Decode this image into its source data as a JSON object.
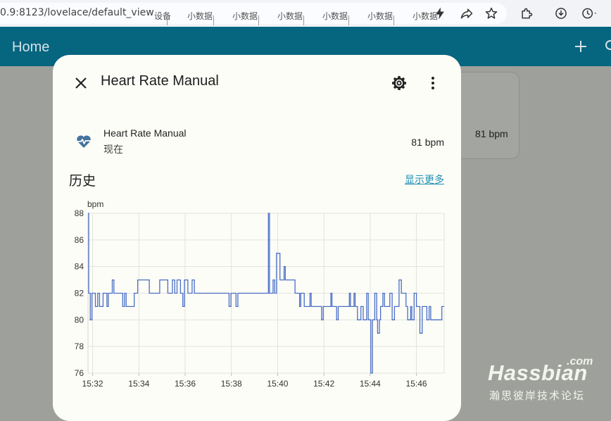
{
  "browser": {
    "url": "0.9:8123/lovelace/default_view",
    "ghost_tabs": [
      "设备",
      "小数据",
      "小数据",
      "小数据",
      "小数据",
      "小数据",
      "小数据"
    ]
  },
  "header": {
    "title": "Home"
  },
  "background_card": {
    "value": "81 bpm"
  },
  "dialog": {
    "title": "Heart Rate Manual",
    "entity": {
      "name": "Heart Rate Manual",
      "time": "现在",
      "state": "81 bpm"
    },
    "history_title": "历史",
    "show_more": "显示更多"
  },
  "chart_data": {
    "type": "line",
    "title": "",
    "ylabel": "bpm",
    "xlabel": "",
    "ylim": [
      76,
      88
    ],
    "xlim_minutes": [
      31.8,
      47.2
    ],
    "y_ticks": [
      76,
      78,
      80,
      82,
      84,
      86,
      88
    ],
    "x_ticks": [
      "15:32",
      "15:34",
      "15:36",
      "15:38",
      "15:40",
      "15:42",
      "15:44",
      "15:46"
    ],
    "x_tick_minutes": [
      32,
      34,
      36,
      38,
      40,
      42,
      44,
      46
    ],
    "grid": true,
    "step": true,
    "color": "#4a6fc7",
    "series": [
      {
        "name": "Heart Rate Manual",
        "points": [
          [
            31.8,
            88
          ],
          [
            31.83,
            82
          ],
          [
            31.9,
            80
          ],
          [
            31.97,
            82
          ],
          [
            32.12,
            81
          ],
          [
            32.22,
            82
          ],
          [
            32.3,
            81
          ],
          [
            32.45,
            82
          ],
          [
            32.62,
            81
          ],
          [
            32.68,
            82
          ],
          [
            32.85,
            83
          ],
          [
            32.92,
            82
          ],
          [
            33.3,
            81
          ],
          [
            33.38,
            82
          ],
          [
            33.45,
            81
          ],
          [
            33.8,
            82
          ],
          [
            33.95,
            83
          ],
          [
            34.45,
            82
          ],
          [
            34.9,
            83
          ],
          [
            35.25,
            82
          ],
          [
            35.45,
            83
          ],
          [
            35.55,
            82
          ],
          [
            35.65,
            83
          ],
          [
            35.8,
            82
          ],
          [
            35.9,
            81
          ],
          [
            35.97,
            83
          ],
          [
            36.12,
            82
          ],
          [
            36.3,
            83
          ],
          [
            36.4,
            82
          ],
          [
            37.9,
            81
          ],
          [
            37.98,
            82
          ],
          [
            38.2,
            81
          ],
          [
            38.28,
            82
          ],
          [
            39.6,
            88
          ],
          [
            39.65,
            82
          ],
          [
            39.8,
            83
          ],
          [
            39.87,
            82
          ],
          [
            39.95,
            85
          ],
          [
            40.1,
            83
          ],
          [
            40.28,
            84
          ],
          [
            40.33,
            83
          ],
          [
            40.75,
            82
          ],
          [
            40.95,
            81
          ],
          [
            41.0,
            82
          ],
          [
            41.15,
            81
          ],
          [
            41.4,
            82
          ],
          [
            41.45,
            81
          ],
          [
            41.9,
            80
          ],
          [
            41.97,
            81
          ],
          [
            42.3,
            82
          ],
          [
            42.35,
            81
          ],
          [
            42.55,
            80
          ],
          [
            42.62,
            81
          ],
          [
            43.1,
            82
          ],
          [
            43.15,
            81
          ],
          [
            43.3,
            82
          ],
          [
            43.35,
            81
          ],
          [
            43.45,
            80
          ],
          [
            43.6,
            81
          ],
          [
            43.7,
            80
          ],
          [
            43.85,
            82
          ],
          [
            43.92,
            80
          ],
          [
            44.03,
            76
          ],
          [
            44.1,
            80
          ],
          [
            44.2,
            82
          ],
          [
            44.28,
            80
          ],
          [
            44.32,
            79
          ],
          [
            44.4,
            80
          ],
          [
            44.45,
            81
          ],
          [
            44.55,
            82
          ],
          [
            44.62,
            81
          ],
          [
            44.85,
            82
          ],
          [
            44.95,
            80
          ],
          [
            45.05,
            81
          ],
          [
            45.25,
            83
          ],
          [
            45.35,
            82
          ],
          [
            45.55,
            81
          ],
          [
            45.62,
            80
          ],
          [
            45.75,
            81
          ],
          [
            45.8,
            80
          ],
          [
            45.9,
            82
          ],
          [
            46.0,
            81
          ],
          [
            46.15,
            79
          ],
          [
            46.25,
            81
          ],
          [
            46.45,
            80
          ],
          [
            46.55,
            81
          ],
          [
            46.62,
            80
          ],
          [
            47.1,
            81
          ],
          [
            47.2,
            81
          ]
        ]
      }
    ]
  },
  "watermark": {
    "com": ".com",
    "main": "Hassbian",
    "sub": "瀚思彼岸技术论坛"
  }
}
